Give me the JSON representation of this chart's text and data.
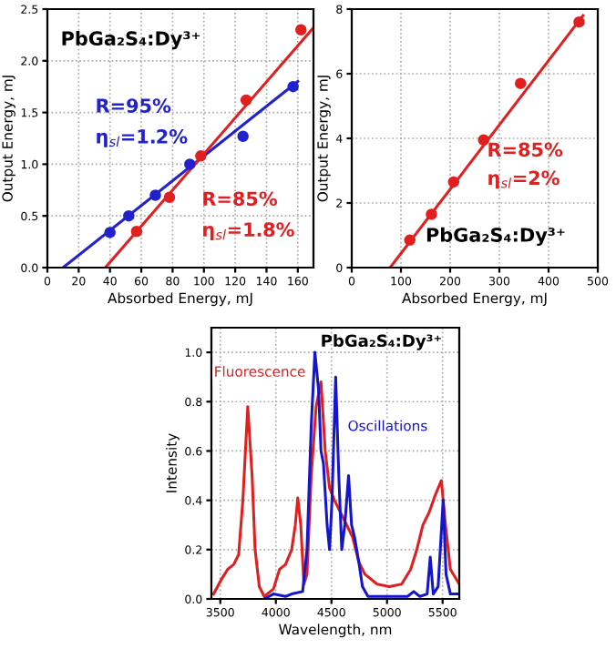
{
  "chart_data": [
    {
      "type": "scatter",
      "xlabel": "Absorbed Energy, mJ",
      "ylabel": "Output Energy, mJ",
      "xlim": [
        0,
        170
      ],
      "xticks": [
        0,
        20,
        40,
        60,
        80,
        100,
        120,
        140,
        160
      ],
      "ylim": [
        0,
        2.5
      ],
      "yticks": [
        {
          "value": 0,
          "label": "0.0"
        },
        0.5,
        {
          "value": 1,
          "label": "1.0"
        },
        1.5,
        {
          "value": 2,
          "label": "2.0"
        },
        2.5
      ],
      "grid": true,
      "marker": "circle",
      "annotations": [
        "PbGa₂S₄:Dy³⁺",
        "R=95%",
        "η$_{sl}$=1.2%",
        "R=85%",
        "η$_{sl}$=1.8%"
      ],
      "series": [
        {
          "color": "#2222cc",
          "x": [
            40,
            52,
            69,
            91,
            125,
            157
          ],
          "values": [
            0.34,
            0.5,
            0.7,
            1.0,
            1.27,
            1.75
          ]
        },
        {
          "color": "#e02020",
          "x": [
            57,
            78,
            98,
            127,
            162
          ],
          "values": [
            0.35,
            0.68,
            1.08,
            1.62,
            2.3
          ]
        },
        {
          "type": "line",
          "marker": "none",
          "color": "#2222cc",
          "x": [
            10,
            160
          ],
          "values": [
            0,
            1.8
          ]
        },
        {
          "type": "line",
          "marker": "none",
          "color": "#e02020",
          "x": [
            37,
            170
          ],
          "values": [
            0,
            2.32
          ]
        }
      ]
    },
    {
      "type": "scatter",
      "xlabel": "Absorbed Energy, mJ",
      "ylabel": "Output Energy, mJ",
      "xlim": [
        0,
        500
      ],
      "xticks": [
        0,
        100,
        200,
        300,
        400,
        500
      ],
      "ylim": [
        0,
        8
      ],
      "yticks": [
        0,
        2,
        4,
        6,
        8
      ],
      "grid": true,
      "marker": "circle",
      "annotations": [
        "R=85%",
        "η$_{sl}$=2%",
        "PbGa₂S₄:Dy³⁺"
      ],
      "series": [
        {
          "color": "#e02020",
          "x": [
            118,
            162,
            207,
            268,
            343,
            462
          ],
          "values": [
            0.85,
            1.65,
            2.65,
            3.95,
            5.7,
            7.6
          ]
        },
        {
          "type": "line",
          "marker": "none",
          "color": "#e02020",
          "x": [
            78,
            470
          ],
          "values": [
            0,
            7.8
          ]
        }
      ]
    },
    {
      "type": "line",
      "xlabel": "Wavelength, nm",
      "ylabel": "Intensity",
      "xlim": [
        3420,
        5650
      ],
      "xticks": [
        3500,
        4000,
        4500,
        5000,
        5500
      ],
      "ylim": [
        0,
        1.1
      ],
      "yticks": [
        {
          "value": 0,
          "label": "0.0"
        },
        0.2,
        0.4,
        0.6,
        0.8,
        {
          "value": 1,
          "label": "1.0"
        }
      ],
      "grid": true,
      "annotations": [
        "PbGa₂S₄:Dy³⁺"
      ],
      "series": [
        {
          "name": "Fluorescence",
          "color": "#e02020",
          "x": [
            3440,
            3511,
            3566,
            3621,
            3665,
            3703,
            3747,
            3786,
            3813,
            3851,
            3895,
            3978,
            4033,
            4087,
            4142,
            4175,
            4197,
            4224,
            4252,
            4280,
            4318,
            4362,
            4406,
            4444,
            4483,
            4527,
            4582,
            4637,
            4691,
            4746,
            4801,
            4911,
            5021,
            5131,
            5213,
            5268,
            5323,
            5378,
            5433,
            5489,
            5526,
            5570,
            5650
          ],
          "values": [
            0.02,
            0.08,
            0.12,
            0.14,
            0.18,
            0.4,
            0.78,
            0.5,
            0.2,
            0.05,
            0.01,
            0.04,
            0.12,
            0.14,
            0.2,
            0.3,
            0.41,
            0.3,
            0.06,
            0.1,
            0.5,
            0.78,
            0.88,
            0.6,
            0.45,
            0.4,
            0.35,
            0.3,
            0.25,
            0.15,
            0.1,
            0.06,
            0.05,
            0.06,
            0.12,
            0.2,
            0.3,
            0.35,
            0.42,
            0.48,
            0.3,
            0.12,
            0.06
          ]
        },
        {
          "name": "Oscillations",
          "color": "#1515cc",
          "x": [
            3895,
            3978,
            4087,
            4142,
            4241,
            4280,
            4318,
            4351,
            4384,
            4406,
            4428,
            4461,
            4483,
            4505,
            4538,
            4566,
            4593,
            4620,
            4654,
            4681,
            4708,
            4746,
            4779,
            4829,
            5021,
            5185,
            5240,
            5295,
            5361,
            5389,
            5416,
            5460,
            5505,
            5531,
            5570,
            5650
          ],
          "values": [
            0,
            0.02,
            0.01,
            0.02,
            0.03,
            0.2,
            0.7,
            1.0,
            0.85,
            0.6,
            0.55,
            0.3,
            0.2,
            0.4,
            0.9,
            0.5,
            0.2,
            0.3,
            0.5,
            0.3,
            0.25,
            0.15,
            0.05,
            0.01,
            0.01,
            0.01,
            0.03,
            0.01,
            0.02,
            0.17,
            0.02,
            0.05,
            0.4,
            0.1,
            0.02,
            0.02
          ]
        }
      ]
    }
  ]
}
